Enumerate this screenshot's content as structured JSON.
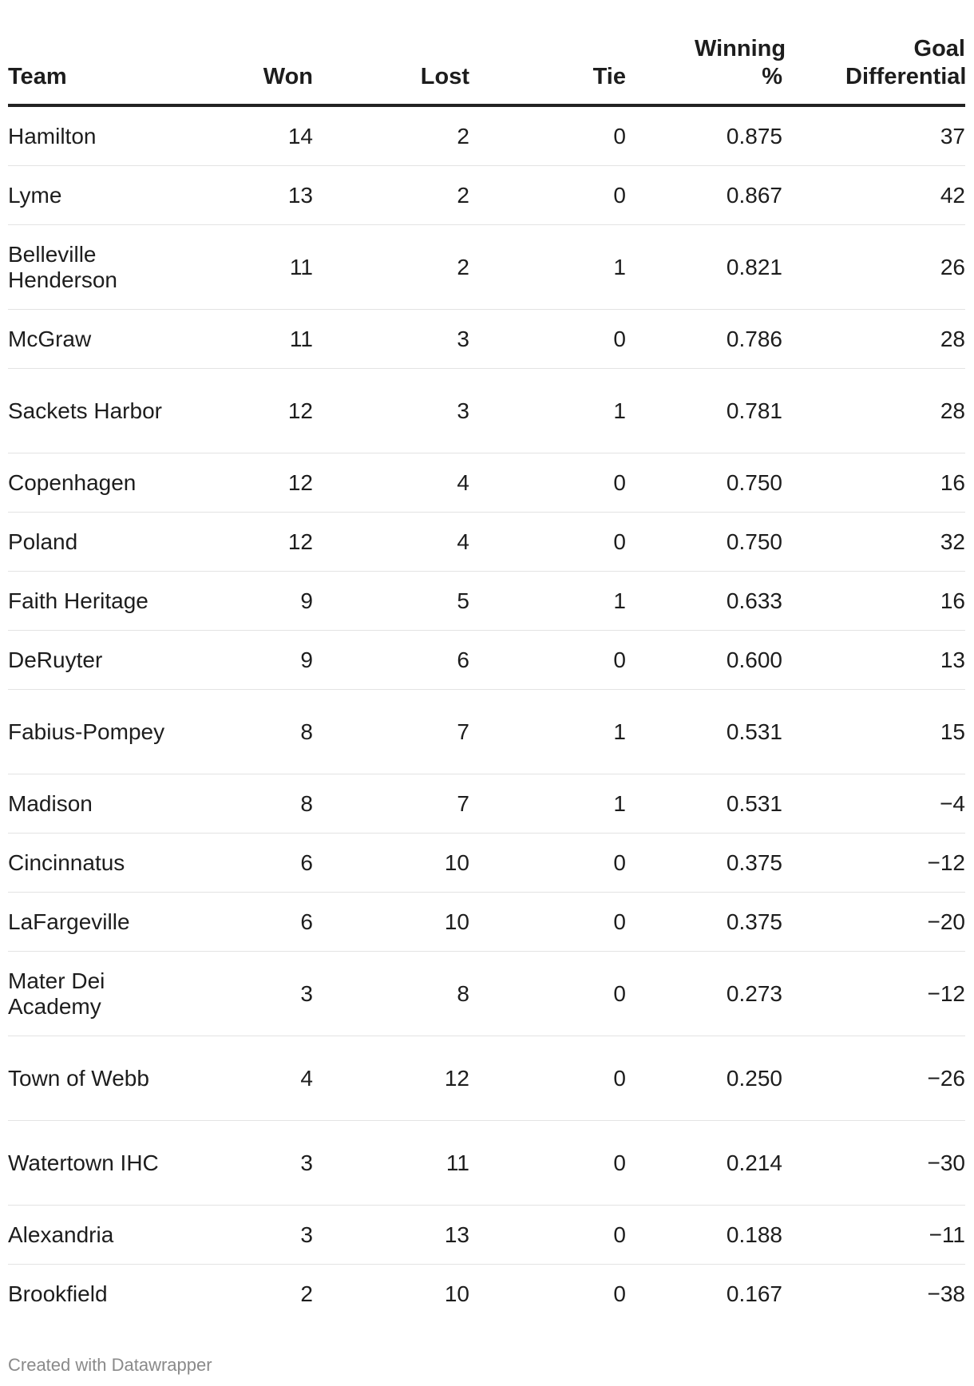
{
  "chart_data": {
    "type": "table",
    "columns": [
      "Team",
      "Won",
      "Lost",
      "Tie",
      "Winning %",
      "Goal Differential"
    ],
    "rows": [
      [
        "Hamilton",
        "14",
        "2",
        "0",
        "0.875",
        "37"
      ],
      [
        "Lyme",
        "13",
        "2",
        "0",
        "0.867",
        "42"
      ],
      [
        "Belleville Henderson",
        "11",
        "2",
        "1",
        "0.821",
        "26"
      ],
      [
        "McGraw",
        "11",
        "3",
        "0",
        "0.786",
        "28"
      ],
      [
        "Sackets Harbor",
        "12",
        "3",
        "1",
        "0.781",
        "28"
      ],
      [
        "Copenhagen",
        "12",
        "4",
        "0",
        "0.750",
        "16"
      ],
      [
        "Poland",
        "12",
        "4",
        "0",
        "0.750",
        "32"
      ],
      [
        "Faith Heritage",
        "9",
        "5",
        "1",
        "0.633",
        "16"
      ],
      [
        "DeRuyter",
        "9",
        "6",
        "0",
        "0.600",
        "13"
      ],
      [
        "Fabius-Pompey",
        "8",
        "7",
        "1",
        "0.531",
        "15"
      ],
      [
        "Madison",
        "8",
        "7",
        "1",
        "0.531",
        "−4"
      ],
      [
        "Cincinnatus",
        "6",
        "10",
        "0",
        "0.375",
        "−12"
      ],
      [
        "LaFargeville",
        "6",
        "10",
        "0",
        "0.375",
        "−20"
      ],
      [
        "Mater Dei Academy",
        "3",
        "8",
        "0",
        "0.273",
        "−12"
      ],
      [
        "Town of Webb",
        "4",
        "12",
        "0",
        "0.250",
        "−26"
      ],
      [
        "Watertown IHC",
        "3",
        "11",
        "0",
        "0.214",
        "−30"
      ],
      [
        "Alexandria",
        "3",
        "13",
        "0",
        "0.188",
        "−11"
      ],
      [
        "Brookfield",
        "2",
        "10",
        "0",
        "0.167",
        "−38"
      ]
    ]
  },
  "footer": {
    "credit": "Created with Datawrapper"
  }
}
